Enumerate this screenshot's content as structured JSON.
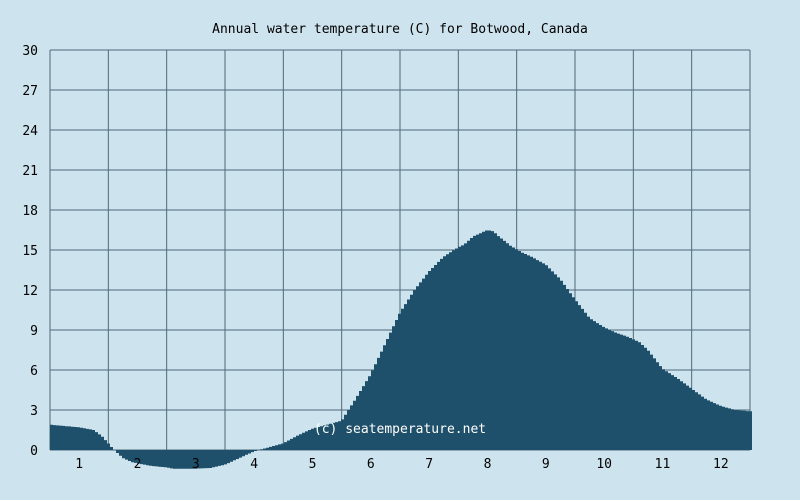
{
  "chart_data": {
    "type": "area",
    "title": "Annual water temperature (C) for Botwood, Canada",
    "xlabel": "",
    "ylabel": "",
    "ylim": [
      0,
      30
    ],
    "yticks": [
      0,
      3,
      6,
      9,
      12,
      15,
      18,
      21,
      24,
      27,
      30
    ],
    "xlim": [
      0.5,
      12.5
    ],
    "x_tick_labels": [
      "1",
      "2",
      "3",
      "4",
      "5",
      "6",
      "7",
      "8",
      "9",
      "10",
      "11",
      "12"
    ],
    "grid": true,
    "x_unit": "month",
    "series": [
      {
        "x": [
          0.5,
          0.75,
          1.0,
          1.25,
          1.4,
          1.5,
          1.6,
          1.75,
          1.9,
          2.0,
          2.25,
          2.5,
          2.6,
          2.75,
          3.0,
          3.25,
          3.5,
          3.75,
          4.0,
          4.25,
          4.5,
          4.75,
          5.0,
          5.25,
          5.5,
          5.75,
          6.0,
          6.25,
          6.5,
          6.75,
          7.0,
          7.25,
          7.5,
          7.6,
          7.75,
          8.0,
          8.1,
          8.2,
          8.4,
          8.6,
          8.75,
          9.0,
          9.25,
          9.5,
          9.75,
          10.0,
          10.2,
          10.4,
          10.6,
          10.75,
          11.0,
          11.25,
          11.5,
          11.75,
          12.0,
          12.25,
          12.5
        ],
        "values": [
          1.9,
          1.8,
          1.7,
          1.5,
          1.0,
          0.5,
          0.0,
          -0.6,
          -0.9,
          -1.0,
          -1.2,
          -1.3,
          -1.4,
          -1.4,
          -1.4,
          -1.35,
          -1.1,
          -0.6,
          -0.1,
          0.2,
          0.5,
          1.1,
          1.6,
          1.9,
          2.2,
          3.9,
          5.7,
          8.0,
          10.3,
          12.0,
          13.4,
          14.5,
          15.2,
          15.4,
          16.0,
          16.5,
          16.4,
          16.0,
          15.3,
          14.8,
          14.5,
          13.9,
          12.8,
          11.3,
          9.9,
          9.2,
          8.8,
          8.5,
          8.1,
          7.5,
          6.1,
          5.4,
          4.6,
          3.8,
          3.3,
          3.0,
          2.9
        ]
      }
    ],
    "annotation": "(c) seatemperature.net",
    "colors": {
      "background": "#cde3ee",
      "fill": "#1f506b",
      "grid": "#4f6a7b",
      "text": "#000000",
      "annotation": "#ffffff"
    }
  }
}
